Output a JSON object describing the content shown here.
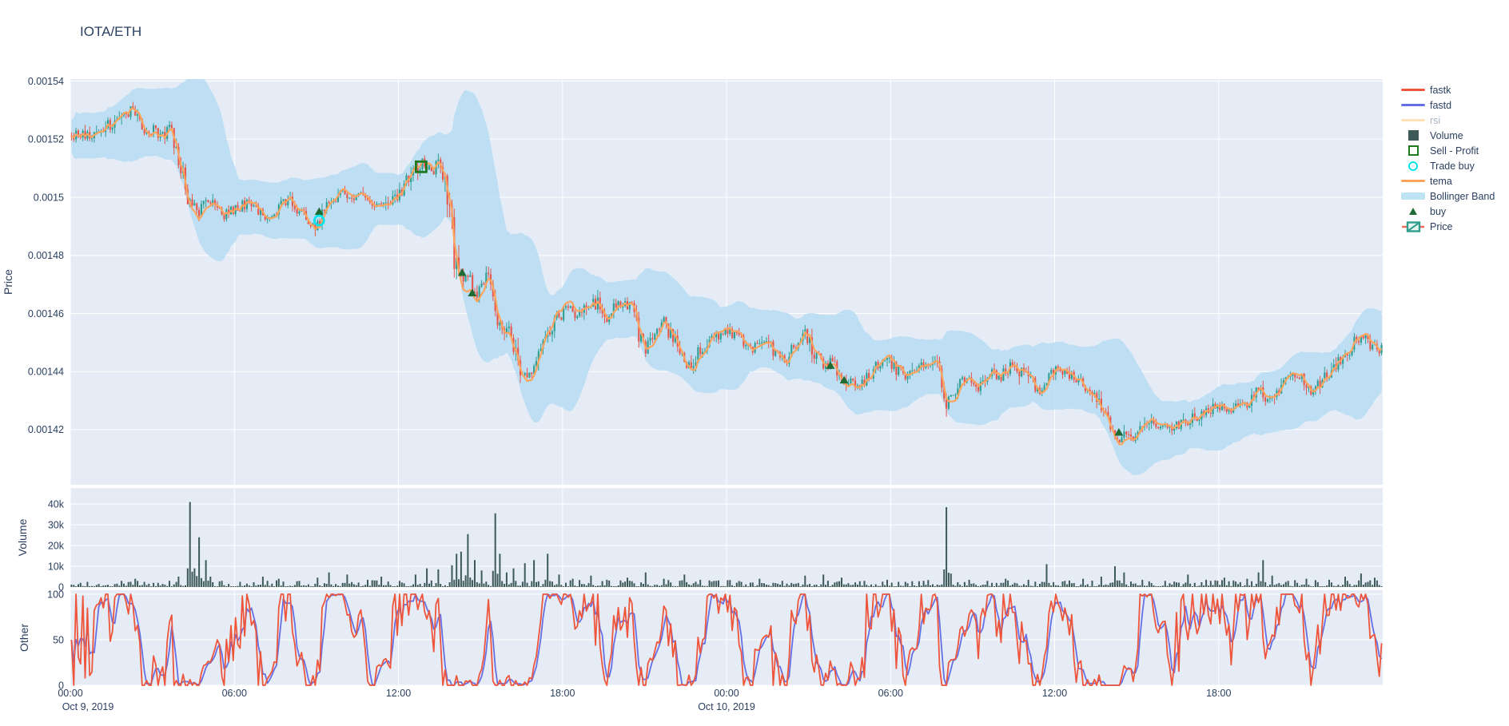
{
  "title": "IOTA/ETH",
  "colors": {
    "paper": "#ffffff",
    "plot_bg": "#e5ecf6",
    "grid": "#ffffff",
    "text": "#2a3f5f",
    "muted_text": "#a9b6c6",
    "candle_up": "#2f9e8f",
    "candle_down": "#e8554b",
    "tema": "#fda45c",
    "bollinger": "#b7dcf3",
    "volume_bar": "#3e5a58",
    "fastk": "#ef553b",
    "fastd": "#6670e4",
    "rsi_muted": "#ffe2b8",
    "buy_marker": "#1e6b33",
    "sell_marker": "#1d7a1d",
    "trade_buy_marker": "#00e5ee"
  },
  "legend": {
    "items": [
      {
        "label": "fastk",
        "type": "line",
        "color": "#ef553b",
        "muted": false
      },
      {
        "label": "fastd",
        "type": "line",
        "color": "#6670e4",
        "muted": false
      },
      {
        "label": "rsi",
        "type": "line",
        "color": "#ffe2b8",
        "muted": true
      },
      {
        "label": "Volume",
        "type": "square",
        "color": "#3e5a58",
        "muted": false
      },
      {
        "label": "Sell - Profit",
        "type": "open-square",
        "color": "#1d7a1d",
        "muted": false
      },
      {
        "label": "Trade buy",
        "type": "circle",
        "color": "#00e5ee",
        "muted": false
      },
      {
        "label": "tema",
        "type": "line",
        "color": "#fda45c",
        "muted": false
      },
      {
        "label": "Bollinger Band",
        "type": "band",
        "color": "#bee3f5",
        "muted": false
      },
      {
        "label": "buy",
        "type": "triangle",
        "color": "#1e6b33",
        "muted": false
      },
      {
        "label": "Price",
        "type": "candle",
        "color": "#2f9e8f",
        "muted": false
      }
    ]
  },
  "axes": {
    "price": {
      "title": "Price",
      "range": [
        0.001401,
        0.0015407
      ],
      "ticks": [
        {
          "v": 0.00154,
          "label": "0.00154"
        },
        {
          "v": 0.00152,
          "label": "0.00152"
        },
        {
          "v": 0.0015,
          "label": "0.0015"
        },
        {
          "v": 0.00148,
          "label": "0.00148"
        },
        {
          "v": 0.00146,
          "label": "0.00146"
        },
        {
          "v": 0.00144,
          "label": "0.00144"
        },
        {
          "v": 0.00142,
          "label": "0.00142"
        }
      ]
    },
    "volume": {
      "title": "Volume",
      "range": [
        0,
        43500
      ],
      "ticks": [
        {
          "v": 0,
          "label": "0"
        },
        {
          "v": 10000,
          "label": "10k"
        },
        {
          "v": 20000,
          "label": "20k"
        },
        {
          "v": 30000,
          "label": "30k"
        },
        {
          "v": 40000,
          "label": "40k"
        }
      ]
    },
    "other": {
      "title": "Other",
      "range": [
        0,
        104
      ],
      "ticks": [
        {
          "v": 0,
          "label": "0"
        },
        {
          "v": 50,
          "label": "50"
        },
        {
          "v": 100,
          "label": "100"
        }
      ]
    },
    "x": {
      "range_hours": [
        0,
        48
      ],
      "ticks": [
        {
          "h": 0,
          "label": "00:00",
          "date": "Oct 9, 2019"
        },
        {
          "h": 6,
          "label": "06:00"
        },
        {
          "h": 12,
          "label": "12:00"
        },
        {
          "h": 18,
          "label": "18:00"
        },
        {
          "h": 24,
          "label": "00:00",
          "date": "Oct 10, 2019"
        },
        {
          "h": 30,
          "label": "06:00"
        },
        {
          "h": 36,
          "label": "12:00"
        },
        {
          "h": 42,
          "label": "18:00"
        }
      ]
    }
  },
  "chart_data": {
    "type": "candlestick",
    "pair": "IOTA/ETH",
    "start": "Oct 9, 2019 00:00",
    "hours": 48,
    "interval_minutes": 5,
    "series": [
      "Price",
      "tema",
      "Bollinger Band",
      "Volume",
      "fastk",
      "fastd"
    ],
    "hidden_series": [
      "rsi"
    ],
    "price_anchors": [
      [
        0,
        0.001521
      ],
      [
        0.3,
        0.001522
      ],
      [
        0.7,
        0.0015215
      ],
      [
        1.0,
        0.001523
      ],
      [
        1.4,
        0.001525
      ],
      [
        1.8,
        0.001527
      ],
      [
        2.1,
        0.001529
      ],
      [
        2.3,
        0.00153
      ],
      [
        2.5,
        0.001525
      ],
      [
        2.8,
        0.001522
      ],
      [
        3.0,
        0.001524
      ],
      [
        3.3,
        0.001521
      ],
      [
        3.6,
        0.001523
      ],
      [
        3.85,
        0.001518
      ],
      [
        4.0,
        0.001511
      ],
      [
        4.2,
        0.001503
      ],
      [
        4.4,
        0.001497
      ],
      [
        4.7,
        0.001495
      ],
      [
        5.0,
        0.0015
      ],
      [
        5.3,
        0.001497
      ],
      [
        5.6,
        0.001494
      ],
      [
        5.9,
        0.001495
      ],
      [
        6.2,
        0.001497
      ],
      [
        6.5,
        0.001498
      ],
      [
        6.8,
        0.001496
      ],
      [
        7.1,
        0.001493
      ],
      [
        7.4,
        0.001495
      ],
      [
        7.7,
        0.001497
      ],
      [
        8.0,
        0.001499
      ],
      [
        8.3,
        0.001496
      ],
      [
        8.6,
        0.001493
      ],
      [
        8.9,
        0.00149
      ],
      [
        9.1,
        0.001492
      ],
      [
        9.4,
        0.001497
      ],
      [
        9.7,
        0.0015
      ],
      [
        9.9,
        0.001503
      ],
      [
        10.2,
        0.001499
      ],
      [
        10.5,
        0.001502
      ],
      [
        10.8,
        0.0015
      ],
      [
        11.1,
        0.001498
      ],
      [
        11.4,
        0.001497
      ],
      [
        11.7,
        0.001499
      ],
      [
        12.0,
        0.001501
      ],
      [
        12.3,
        0.001505
      ],
      [
        12.6,
        0.001509
      ],
      [
        12.85,
        0.001512
      ],
      [
        13.1,
        0.001511
      ],
      [
        13.3,
        0.001509
      ],
      [
        13.5,
        0.001513
      ],
      [
        13.7,
        0.001508
      ],
      [
        13.85,
        0.001499
      ],
      [
        14.0,
        0.001483
      ],
      [
        14.2,
        0.001474
      ],
      [
        14.4,
        0.00147
      ],
      [
        14.6,
        0.001472
      ],
      [
        14.8,
        0.001466
      ],
      [
        15.0,
        0.001469
      ],
      [
        15.2,
        0.001473
      ],
      [
        15.45,
        0.001468
      ],
      [
        15.6,
        0.001459
      ],
      [
        15.8,
        0.001454
      ],
      [
        16.0,
        0.001457
      ],
      [
        16.2,
        0.00145
      ],
      [
        16.45,
        0.001442
      ],
      [
        16.65,
        0.001437
      ],
      [
        16.85,
        0.001441
      ],
      [
        17.1,
        0.001446
      ],
      [
        17.4,
        0.00145
      ],
      [
        17.7,
        0.001456
      ],
      [
        17.95,
        0.00146
      ],
      [
        18.2,
        0.001462
      ],
      [
        18.45,
        0.001459
      ],
      [
        18.7,
        0.001462
      ],
      [
        19.0,
        0.001464
      ],
      [
        19.3,
        0.001463
      ],
      [
        19.55,
        0.001457
      ],
      [
        19.8,
        0.001461
      ],
      [
        20.1,
        0.001463
      ],
      [
        20.5,
        0.001462
      ],
      [
        20.8,
        0.001453
      ],
      [
        21.0,
        0.001447
      ],
      [
        21.3,
        0.001452
      ],
      [
        21.7,
        0.001457
      ],
      [
        22.0,
        0.001452
      ],
      [
        22.3,
        0.001446
      ],
      [
        22.55,
        0.001441
      ],
      [
        22.8,
        0.001444
      ],
      [
        23.1,
        0.001448
      ],
      [
        23.5,
        0.001451
      ],
      [
        23.8,
        0.001453
      ],
      [
        24.2,
        0.001453
      ],
      [
        24.6,
        0.00145
      ],
      [
        25.0,
        0.001448
      ],
      [
        25.4,
        0.001451
      ],
      [
        25.8,
        0.001446
      ],
      [
        26.2,
        0.001444
      ],
      [
        26.6,
        0.00145
      ],
      [
        26.9,
        0.001453
      ],
      [
        27.2,
        0.001446
      ],
      [
        27.6,
        0.001441
      ],
      [
        27.8,
        0.001443
      ],
      [
        28.1,
        0.00144
      ],
      [
        28.5,
        0.001436
      ],
      [
        28.8,
        0.001434
      ],
      [
        29.1,
        0.001437
      ],
      [
        29.4,
        0.001441
      ],
      [
        29.8,
        0.001445
      ],
      [
        30.2,
        0.001441
      ],
      [
        30.6,
        0.001438
      ],
      [
        31.0,
        0.001441
      ],
      [
        31.4,
        0.001443
      ],
      [
        31.8,
        0.00144
      ],
      [
        32.0,
        0.001427
      ],
      [
        32.2,
        0.001431
      ],
      [
        32.5,
        0.001436
      ],
      [
        32.9,
        0.001438
      ],
      [
        33.2,
        0.001435
      ],
      [
        33.6,
        0.00144
      ],
      [
        34.0,
        0.001438
      ],
      [
        34.4,
        0.001442
      ],
      [
        34.8,
        0.001439
      ],
      [
        35.2,
        0.001436
      ],
      [
        35.5,
        0.001433
      ],
      [
        35.8,
        0.001439
      ],
      [
        36.2,
        0.001441
      ],
      [
        36.6,
        0.001438
      ],
      [
        37.0,
        0.001436
      ],
      [
        37.4,
        0.001433
      ],
      [
        37.7,
        0.001429
      ],
      [
        38.0,
        0.001421
      ],
      [
        38.3,
        0.001415
      ],
      [
        38.55,
        0.00142
      ],
      [
        38.8,
        0.001416
      ],
      [
        39.1,
        0.001419
      ],
      [
        39.5,
        0.001422
      ],
      [
        40.0,
        0.001421
      ],
      [
        40.5,
        0.001421
      ],
      [
        41.0,
        0.001424
      ],
      [
        41.5,
        0.001426
      ],
      [
        42.0,
        0.001429
      ],
      [
        42.3,
        0.001425
      ],
      [
        42.7,
        0.001428
      ],
      [
        43.1,
        0.00143
      ],
      [
        43.5,
        0.001434
      ],
      [
        43.8,
        0.00143
      ],
      [
        44.2,
        0.001434
      ],
      [
        44.6,
        0.001437
      ],
      [
        45.0,
        0.001438
      ],
      [
        45.4,
        0.001433
      ],
      [
        45.8,
        0.001437
      ],
      [
        46.2,
        0.001441
      ],
      [
        46.6,
        0.001446
      ],
      [
        47.0,
        0.00145
      ],
      [
        47.3,
        0.001453
      ],
      [
        47.6,
        0.001449
      ],
      [
        48.0,
        0.001447
      ]
    ],
    "volume_spikes": [
      [
        0.3,
        2000
      ],
      [
        1.0,
        1500
      ],
      [
        1.8,
        3000
      ],
      [
        2.3,
        4000
      ],
      [
        2.7,
        2500
      ],
      [
        3.2,
        2000
      ],
      [
        3.9,
        5000
      ],
      [
        4.3,
        41000
      ],
      [
        4.5,
        9000
      ],
      [
        4.7,
        24000
      ],
      [
        4.9,
        13000
      ],
      [
        5.1,
        5000
      ],
      [
        5.5,
        3000
      ],
      [
        6.2,
        2500
      ],
      [
        7.0,
        5000
      ],
      [
        7.6,
        4000
      ],
      [
        8.3,
        3000
      ],
      [
        9.0,
        4500
      ],
      [
        9.4,
        7000
      ],
      [
        10.1,
        6000
      ],
      [
        10.8,
        3500
      ],
      [
        11.3,
        5000
      ],
      [
        12.0,
        3000
      ],
      [
        12.6,
        6000
      ],
      [
        13.0,
        9000
      ],
      [
        13.4,
        8500
      ],
      [
        13.9,
        10500
      ],
      [
        14.1,
        16000
      ],
      [
        14.25,
        17000
      ],
      [
        14.5,
        25500
      ],
      [
        14.75,
        13000
      ],
      [
        15.0,
        8000
      ],
      [
        15.5,
        35500
      ],
      [
        15.65,
        16000
      ],
      [
        15.9,
        7000
      ],
      [
        16.2,
        9000
      ],
      [
        16.6,
        11500
      ],
      [
        16.9,
        13000
      ],
      [
        17.4,
        16000
      ],
      [
        17.8,
        6000
      ],
      [
        18.3,
        4000
      ],
      [
        19.0,
        5500
      ],
      [
        19.6,
        3500
      ],
      [
        20.3,
        4500
      ],
      [
        21.0,
        7000
      ],
      [
        21.7,
        4000
      ],
      [
        22.4,
        6000
      ],
      [
        23.0,
        3500
      ],
      [
        23.6,
        3000
      ],
      [
        24.5,
        2500
      ],
      [
        25.2,
        4000
      ],
      [
        26.0,
        3000
      ],
      [
        26.8,
        5500
      ],
      [
        27.5,
        6000
      ],
      [
        28.2,
        4500
      ],
      [
        29.0,
        3000
      ],
      [
        29.8,
        3500
      ],
      [
        30.5,
        2500
      ],
      [
        31.2,
        3000
      ],
      [
        32.0,
        38500
      ],
      [
        32.15,
        6500
      ],
      [
        32.8,
        3500
      ],
      [
        33.5,
        3000
      ],
      [
        34.2,
        4000
      ],
      [
        35.0,
        3500
      ],
      [
        35.7,
        11000
      ],
      [
        36.3,
        3000
      ],
      [
        37.0,
        4000
      ],
      [
        37.7,
        5000
      ],
      [
        38.2,
        10000
      ],
      [
        38.5,
        7000
      ],
      [
        39.2,
        3500
      ],
      [
        40.0,
        3000
      ],
      [
        40.8,
        6000
      ],
      [
        41.5,
        3500
      ],
      [
        42.2,
        4500
      ],
      [
        43.0,
        4000
      ],
      [
        43.4,
        7000
      ],
      [
        43.6,
        13000
      ],
      [
        43.9,
        5500
      ],
      [
        44.5,
        3000
      ],
      [
        45.2,
        4000
      ],
      [
        46.0,
        3500
      ],
      [
        46.6,
        5000
      ],
      [
        47.2,
        6500
      ],
      [
        47.7,
        4500
      ]
    ],
    "markers": {
      "buy": [
        [
          9.1,
          0.001495
        ],
        [
          14.33,
          0.001474
        ],
        [
          14.7,
          0.001467
        ],
        [
          27.8,
          0.001442
        ],
        [
          28.3,
          0.001437
        ],
        [
          38.35,
          0.001419
        ]
      ],
      "trade_buy": [
        [
          9.1,
          0.001492
        ]
      ],
      "sell_profit": [
        [
          12.83,
          0.0015105
        ]
      ]
    },
    "oscillator": {
      "names": [
        "fastk",
        "fastd"
      ],
      "ylim": [
        0,
        100
      ],
      "ticks": [
        0,
        50,
        100
      ]
    },
    "synthesis": {
      "seed": 11,
      "candles": 576,
      "noise": 1.7e-06,
      "wick": 1.8e-06,
      "slope_noise": 0.12,
      "slope_wick": 0.1,
      "bb_window": 24,
      "bb_k": 2.1,
      "bb_base": 5.5e-06,
      "stoch_len": 14,
      "stoch_smooth": 3,
      "tema_period": 10,
      "vol_base": 2400
    }
  }
}
